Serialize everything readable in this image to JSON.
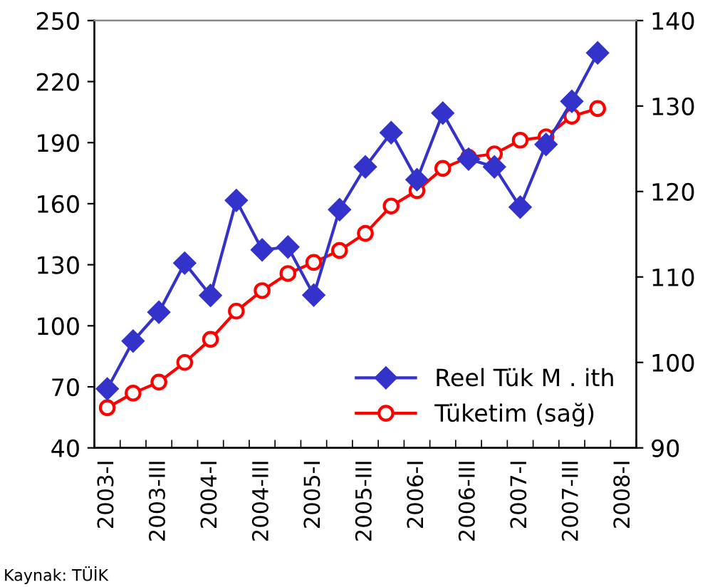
{
  "chart_data": {
    "type": "line",
    "categories": [
      "2003-I",
      null,
      "2003-III",
      null,
      "2004-I",
      null,
      "2004-III",
      null,
      "2005-I",
      null,
      "2005-III",
      null,
      "2006-I",
      null,
      "2006-III",
      null,
      "2007-I",
      null,
      "2007-III",
      null,
      "2008-I"
    ],
    "series": [
      {
        "name": "Reel Tük M . ith",
        "color": "#3333cc",
        "marker": "diamond",
        "values": [
          69,
          92.5,
          106.7,
          130.8,
          114.9,
          161.6,
          137.3,
          138.7,
          115.1,
          157.1,
          178.1,
          194.9,
          171.8,
          204.5,
          181.9,
          178.1,
          158.3,
          189.1,
          210.3,
          234.1,
          null
        ]
      },
      {
        "name": "Tüketim (sağ)",
        "color": "#ff0000",
        "marker": "circle",
        "axis": "y2",
        "values": [
          94.7,
          96.4,
          97.7,
          100,
          102.7,
          106,
          108.4,
          110.4,
          111.7,
          113.1,
          115.1,
          118.3,
          120.1,
          122.7,
          124,
          124.4,
          126,
          126.4,
          128.8,
          129.7,
          null
        ]
      }
    ],
    "ylim": [
      40,
      250
    ],
    "yticks": [
      40,
      70,
      100,
      130,
      160,
      190,
      220,
      250
    ],
    "y2lim": [
      90,
      140
    ],
    "y2ticks": [
      90,
      100,
      110,
      120,
      130,
      140
    ],
    "grid": false,
    "legend": "bottom right",
    "line_style": "solid",
    "annotations": [
      "Kaynak: TÜİK"
    ]
  }
}
